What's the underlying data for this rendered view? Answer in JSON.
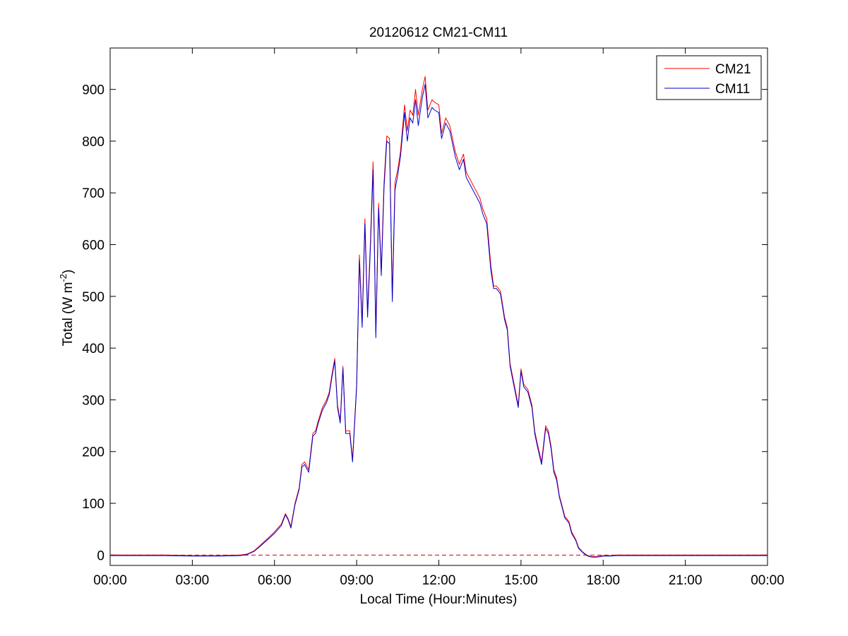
{
  "chart_data": {
    "type": "line",
    "title": "20120612 CM21-CM11",
    "xlabel": "Local Time (Hour:Minutes)",
    "ylabel": {
      "main": "Total (W m",
      "superscript": "-2",
      "close": ")"
    },
    "xlim": [
      0,
      24
    ],
    "ylim": [
      -20,
      980
    ],
    "x_tick_values": [
      0,
      3,
      6,
      9,
      12,
      15,
      18,
      21,
      24
    ],
    "x_tick_labels": [
      "00:00",
      "03:00",
      "06:00",
      "09:00",
      "12:00",
      "15:00",
      "18:00",
      "21:00",
      "00:00"
    ],
    "y_ticks": [
      0,
      100,
      200,
      300,
      400,
      500,
      600,
      700,
      800,
      900
    ],
    "grid": false,
    "legend_position": "top-right",
    "reference_line": {
      "y": 0,
      "style": "dashed",
      "color": "#cc0000"
    },
    "series": [
      {
        "name": "CM21",
        "color": "#ff0000",
        "x": [
          0,
          1,
          2,
          3,
          4,
          4.75,
          5.0,
          5.25,
          5.5,
          5.75,
          6.0,
          6.25,
          6.4,
          6.5,
          6.6,
          6.75,
          6.9,
          7.0,
          7.1,
          7.25,
          7.4,
          7.5,
          7.6,
          7.75,
          7.9,
          8.0,
          8.1,
          8.2,
          8.3,
          8.4,
          8.5,
          8.6,
          8.75,
          8.85,
          9.0,
          9.1,
          9.2,
          9.3,
          9.4,
          9.5,
          9.6,
          9.7,
          9.8,
          9.9,
          10.0,
          10.1,
          10.2,
          10.3,
          10.4,
          10.5,
          10.6,
          10.75,
          10.85,
          10.95,
          11.05,
          11.15,
          11.25,
          11.4,
          11.5,
          11.6,
          11.75,
          11.85,
          12.0,
          12.1,
          12.25,
          12.4,
          12.5,
          12.6,
          12.75,
          12.9,
          13.0,
          13.1,
          13.25,
          13.4,
          13.5,
          13.6,
          13.75,
          13.9,
          14.0,
          14.1,
          14.25,
          14.4,
          14.5,
          14.6,
          14.75,
          14.9,
          15.0,
          15.1,
          15.25,
          15.4,
          15.5,
          15.6,
          15.75,
          15.9,
          16.0,
          16.1,
          16.2,
          16.3,
          16.4,
          16.5,
          16.6,
          16.75,
          16.85,
          17.0,
          17.1,
          17.25,
          17.4,
          17.5,
          17.6,
          17.75,
          17.9,
          18.0,
          18.1,
          18.25,
          18.5,
          18.75,
          19.0,
          19.25,
          19.5,
          20.0,
          21.0,
          22.0,
          23.0,
          24.0
        ],
        "y": [
          0,
          0,
          0,
          -1,
          -1,
          0,
          2,
          8,
          20,
          32,
          45,
          60,
          80,
          70,
          55,
          100,
          130,
          175,
          180,
          165,
          235,
          240,
          260,
          285,
          300,
          315,
          350,
          380,
          290,
          260,
          365,
          240,
          240,
          185,
          330,
          580,
          450,
          650,
          470,
          600,
          760,
          430,
          680,
          550,
          720,
          810,
          805,
          500,
          720,
          745,
          780,
          870,
          820,
          860,
          850,
          900,
          850,
          900,
          925,
          860,
          880,
          875,
          870,
          815,
          845,
          830,
          805,
          780,
          755,
          775,
          740,
          730,
          715,
          700,
          690,
          670,
          650,
          560,
          520,
          520,
          510,
          460,
          440,
          370,
          330,
          290,
          360,
          330,
          320,
          290,
          240,
          215,
          180,
          250,
          240,
          210,
          165,
          150,
          115,
          95,
          75,
          65,
          45,
          30,
          15,
          6,
          0,
          -2,
          -3,
          -3,
          -2,
          -1,
          -1,
          -1,
          0,
          0,
          0,
          0,
          0,
          0,
          0,
          0,
          0,
          0
        ],
        "note_align": "none"
      },
      {
        "name": "CM11",
        "color": "#0000cc",
        "x": [
          0,
          1,
          2,
          3,
          4,
          4.75,
          5.0,
          5.25,
          5.5,
          5.75,
          6.0,
          6.25,
          6.4,
          6.5,
          6.6,
          6.75,
          6.9,
          7.0,
          7.1,
          7.25,
          7.4,
          7.5,
          7.6,
          7.75,
          7.9,
          8.0,
          8.1,
          8.2,
          8.3,
          8.4,
          8.5,
          8.6,
          8.75,
          8.85,
          9.0,
          9.1,
          9.2,
          9.3,
          9.4,
          9.5,
          9.6,
          9.7,
          9.8,
          9.9,
          10.0,
          10.1,
          10.2,
          10.3,
          10.4,
          10.5,
          10.6,
          10.75,
          10.85,
          10.95,
          11.05,
          11.15,
          11.25,
          11.4,
          11.5,
          11.6,
          11.75,
          11.85,
          12.0,
          12.1,
          12.25,
          12.4,
          12.5,
          12.6,
          12.75,
          12.9,
          13.0,
          13.1,
          13.25,
          13.4,
          13.5,
          13.6,
          13.75,
          13.9,
          14.0,
          14.1,
          14.25,
          14.4,
          14.5,
          14.6,
          14.75,
          14.9,
          15.0,
          15.1,
          15.25,
          15.4,
          15.5,
          15.6,
          15.75,
          15.9,
          16.0,
          16.1,
          16.2,
          16.3,
          16.4,
          16.5,
          16.6,
          16.75,
          16.85,
          17.0,
          17.1,
          17.25,
          17.4,
          17.5,
          17.6,
          17.75,
          17.9,
          18.0,
          18.1,
          18.25,
          18.5,
          18.75,
          19.0,
          19.25,
          19.5,
          20.0,
          21.0,
          22.0,
          23.0,
          24.0
        ],
        "y": [
          -1,
          -1,
          -1,
          -2,
          -2,
          -1,
          1,
          7,
          18,
          30,
          42,
          57,
          78,
          68,
          52,
          97,
          127,
          170,
          175,
          160,
          230,
          235,
          255,
          280,
          295,
          310,
          345,
          375,
          285,
          255,
          360,
          235,
          235,
          180,
          325,
          570,
          440,
          640,
          460,
          590,
          745,
          420,
          670,
          540,
          710,
          800,
          795,
          490,
          705,
          735,
          770,
          855,
          800,
          845,
          835,
          880,
          830,
          885,
          910,
          845,
          865,
          860,
          855,
          805,
          835,
          820,
          795,
          770,
          745,
          765,
          730,
          720,
          705,
          690,
          680,
          660,
          640,
          550,
          515,
          515,
          505,
          455,
          435,
          365,
          325,
          285,
          355,
          325,
          315,
          285,
          235,
          210,
          175,
          245,
          235,
          205,
          160,
          145,
          112,
          92,
          72,
          62,
          42,
          28,
          13,
          5,
          -1,
          -3,
          -4,
          -4,
          -3,
          -2,
          -2,
          -2,
          -1,
          -1,
          -1,
          -1,
          -1,
          -1,
          -1,
          -1,
          -1,
          -1
        ]
      }
    ]
  }
}
